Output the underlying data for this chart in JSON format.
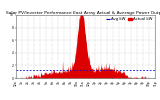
{
  "title": "Solar PV/Inverter Performance East Array Actual & Average Power Output",
  "title_fontsize": 3.2,
  "bg_color": "#ffffff",
  "plot_bg_color": "#ffffff",
  "grid_color": "#aaaaaa",
  "bar_color": "#dd0000",
  "avg_line_color": "#0000cc",
  "ylim": [
    0,
    10
  ],
  "xlim": [
    0,
    287
  ],
  "legend_actual": "Actual kW",
  "legend_avg": "Avg kW",
  "legend_fontsize": 2.8,
  "tick_fontsize": 2.2,
  "num_points": 288,
  "ylabel_ticks": [
    0,
    2,
    4,
    6,
    8,
    10
  ],
  "ylabel_labels": [
    "0",
    "2",
    "4",
    "6",
    "8",
    "10"
  ],
  "avg_line_y": 1.2
}
